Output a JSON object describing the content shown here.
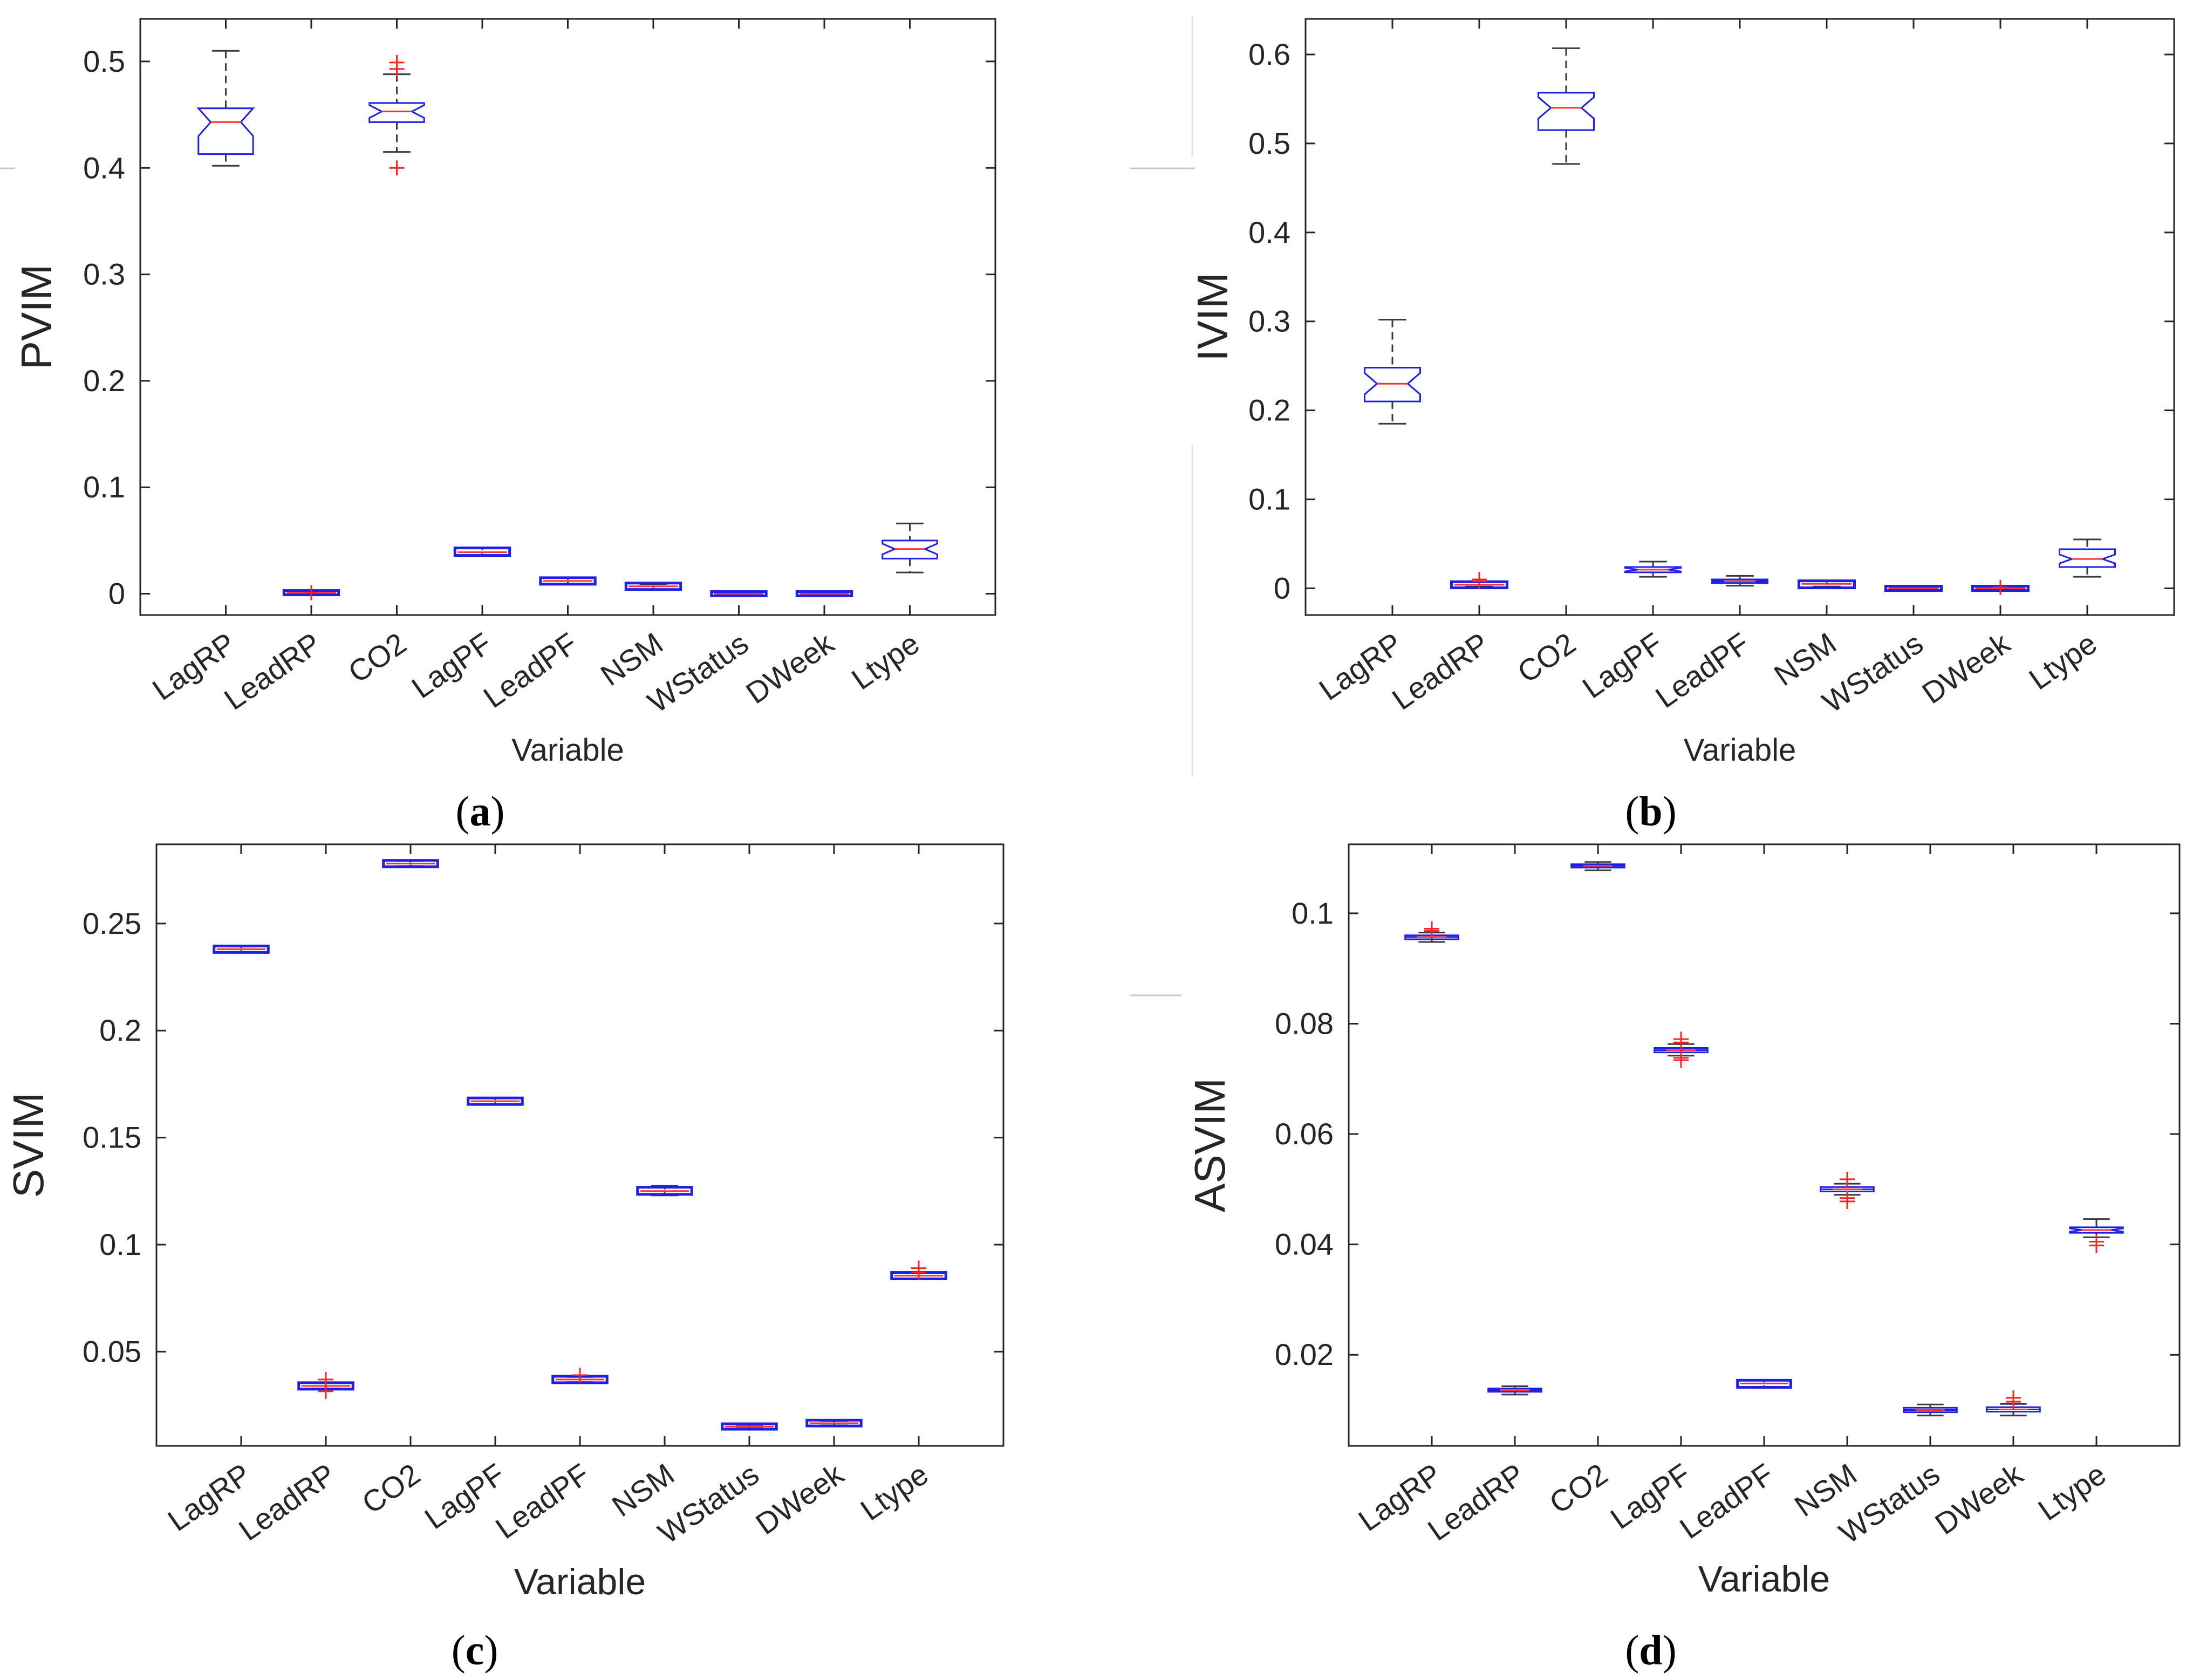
{
  "figure": {
    "categories": [
      "LagRP",
      "LeadRP",
      "CO2",
      "LagPF",
      "LeadPF",
      "NSM",
      "WStatus",
      "DWeek",
      "Ltype"
    ],
    "colors": {
      "box": "#1f1fe6",
      "median": "#ff3030",
      "whisker": "#3a3a3a",
      "outlier": "#ff2020",
      "axis": "#262626"
    }
  },
  "chart_data": [
    {
      "panel": "a",
      "type": "box",
      "ylabel": "PVIM",
      "xlabel": "Variable",
      "ylim": [
        -0.02,
        0.54
      ],
      "yticks": [
        0,
        0.1,
        0.2,
        0.3,
        0.4,
        0.5
      ],
      "ytick_labels": [
        "0",
        "0.1",
        "0.2",
        "0.3",
        "0.4",
        "0.5"
      ],
      "boxes": [
        {
          "q1": 0.413,
          "med": 0.443,
          "q3": 0.456,
          "lo": 0.402,
          "hi": 0.51,
          "notch": 0.013,
          "outliers": []
        },
        {
          "q1": 0.001,
          "med": 0.001,
          "q3": 0.001,
          "lo": 0.001,
          "hi": 0.001,
          "notch": 0,
          "outliers": [
            0.001
          ]
        },
        {
          "q1": 0.443,
          "med": 0.453,
          "q3": 0.461,
          "lo": 0.415,
          "hi": 0.488,
          "notch": 0.006,
          "outliers": [
            0.499,
            0.493,
            0.4
          ]
        },
        {
          "q1": 0.038,
          "med": 0.039,
          "q3": 0.041,
          "lo": 0.036,
          "hi": 0.043,
          "notch": 0.001,
          "outliers": []
        },
        {
          "q1": 0.011,
          "med": 0.012,
          "q3": 0.013,
          "lo": 0.009,
          "hi": 0.015,
          "notch": 0.001,
          "outliers": []
        },
        {
          "q1": 0.006,
          "med": 0.007,
          "q3": 0.008,
          "lo": 0.004,
          "hi": 0.009,
          "notch": 0.001,
          "outliers": []
        },
        {
          "q1": 0.0,
          "med": 0.0,
          "q3": 0.0,
          "lo": 0.0,
          "hi": 0.0,
          "notch": 0,
          "outliers": []
        },
        {
          "q1": 0.0,
          "med": 0.0,
          "q3": 0.0,
          "lo": 0.0,
          "hi": 0.0,
          "notch": 0,
          "outliers": []
        },
        {
          "q1": 0.033,
          "med": 0.042,
          "q3": 0.05,
          "lo": 0.02,
          "hi": 0.066,
          "notch": 0.005,
          "outliers": []
        }
      ]
    },
    {
      "panel": "b",
      "type": "box",
      "ylabel": "IVIM",
      "xlabel": "Variable",
      "ylim": [
        -0.03,
        0.64
      ],
      "yticks": [
        0,
        0.1,
        0.2,
        0.3,
        0.4,
        0.5,
        0.6
      ],
      "ytick_labels": [
        "0",
        "0.1",
        "0.2",
        "0.3",
        "0.4",
        "0.5",
        "0.6"
      ],
      "boxes": [
        {
          "q1": 0.21,
          "med": 0.23,
          "q3": 0.248,
          "lo": 0.185,
          "hi": 0.302,
          "notch": 0.012,
          "outliers": []
        },
        {
          "q1": 0.003,
          "med": 0.004,
          "q3": 0.005,
          "lo": 0.002,
          "hi": 0.007,
          "notch": 0.001,
          "outliers": [
            0.01,
            0.008
          ]
        },
        {
          "q1": 0.515,
          "med": 0.54,
          "q3": 0.557,
          "lo": 0.477,
          "hi": 0.607,
          "notch": 0.012,
          "outliers": []
        },
        {
          "q1": 0.018,
          "med": 0.021,
          "q3": 0.024,
          "lo": 0.013,
          "hi": 0.03,
          "notch": 0.002,
          "outliers": []
        },
        {
          "q1": 0.006,
          "med": 0.008,
          "q3": 0.01,
          "lo": 0.003,
          "hi": 0.014,
          "notch": 0.001,
          "outliers": []
        },
        {
          "q1": 0.003,
          "med": 0.005,
          "q3": 0.006,
          "lo": 0.002,
          "hi": 0.008,
          "notch": 0.001,
          "outliers": []
        },
        {
          "q1": 0.0,
          "med": 0.0,
          "q3": 0.0,
          "lo": 0.0,
          "hi": 0.0,
          "notch": 0,
          "outliers": []
        },
        {
          "q1": 0.0,
          "med": 0.0,
          "q3": 0.0,
          "lo": 0.0,
          "hi": 0.0,
          "notch": 0,
          "outliers": [
            0.001
          ]
        },
        {
          "q1": 0.024,
          "med": 0.033,
          "q3": 0.044,
          "lo": 0.013,
          "hi": 0.055,
          "notch": 0.005,
          "outliers": []
        }
      ]
    },
    {
      "panel": "c",
      "type": "box",
      "ylabel": "SVIM",
      "xlabel": "Variable",
      "ylim": [
        0.006,
        0.287
      ],
      "yticks": [
        0.05,
        0.1,
        0.15,
        0.2,
        0.25
      ],
      "ytick_labels": [
        "0.05",
        "0.1",
        "0.15",
        "0.2",
        "0.25"
      ],
      "boxes": [
        {
          "q1": 0.2375,
          "med": 0.238,
          "q3": 0.2385,
          "lo": 0.2368,
          "hi": 0.2392,
          "notch": 0,
          "outliers": []
        },
        {
          "q1": 0.0335,
          "med": 0.034,
          "q3": 0.0345,
          "lo": 0.0328,
          "hi": 0.0352,
          "notch": 0,
          "outliers": [
            0.037,
            0.0315
          ]
        },
        {
          "q1": 0.2775,
          "med": 0.278,
          "q3": 0.2785,
          "lo": 0.2768,
          "hi": 0.2792,
          "notch": 0,
          "outliers": []
        },
        {
          "q1": 0.1665,
          "med": 0.167,
          "q3": 0.1675,
          "lo": 0.1655,
          "hi": 0.1685,
          "notch": 0,
          "outliers": []
        },
        {
          "q1": 0.0365,
          "med": 0.037,
          "q3": 0.0375,
          "lo": 0.0358,
          "hi": 0.0382,
          "notch": 0,
          "outliers": [
            0.039
          ]
        },
        {
          "q1": 0.1245,
          "med": 0.125,
          "q3": 0.1258,
          "lo": 0.123,
          "hi": 0.1275,
          "notch": 0,
          "outliers": []
        },
        {
          "q1": 0.0148,
          "med": 0.015,
          "q3": 0.0153,
          "lo": 0.0142,
          "hi": 0.0158,
          "notch": 0,
          "outliers": []
        },
        {
          "q1": 0.0163,
          "med": 0.0166,
          "q3": 0.017,
          "lo": 0.0156,
          "hi": 0.0176,
          "notch": 0,
          "outliers": []
        },
        {
          "q1": 0.085,
          "med": 0.0855,
          "q3": 0.086,
          "lo": 0.084,
          "hi": 0.087,
          "notch": 0,
          "outliers": [
            0.089,
            0.087
          ]
        }
      ]
    },
    {
      "panel": "d",
      "type": "box",
      "ylabel": "ASVIM",
      "xlabel": "Variable",
      "ylim": [
        0.0035,
        0.1125
      ],
      "yticks": [
        0.02,
        0.04,
        0.06,
        0.08,
        0.1
      ],
      "ytick_labels": [
        "0.02",
        "0.04",
        "0.06",
        "0.08",
        "0.1"
      ],
      "boxes": [
        {
          "q1": 0.0953,
          "med": 0.0957,
          "q3": 0.096,
          "lo": 0.0948,
          "hi": 0.0965,
          "notch": 0,
          "outliers": [
            0.0972,
            0.0968
          ]
        },
        {
          "q1": 0.0133,
          "med": 0.0136,
          "q3": 0.0139,
          "lo": 0.0128,
          "hi": 0.0143,
          "notch": 0,
          "outliers": []
        },
        {
          "q1": 0.1083,
          "med": 0.1086,
          "q3": 0.1089,
          "lo": 0.1078,
          "hi": 0.1093,
          "notch": 0,
          "outliers": []
        },
        {
          "q1": 0.0748,
          "med": 0.0752,
          "q3": 0.0756,
          "lo": 0.0742,
          "hi": 0.0763,
          "notch": 0,
          "outliers": [
            0.0772,
            0.0766,
            0.0738,
            0.0734
          ]
        },
        {
          "q1": 0.0145,
          "med": 0.0148,
          "q3": 0.015,
          "lo": 0.014,
          "hi": 0.0154,
          "notch": 0,
          "outliers": []
        },
        {
          "q1": 0.0496,
          "med": 0.05,
          "q3": 0.0504,
          "lo": 0.049,
          "hi": 0.051,
          "notch": 0,
          "outliers": [
            0.0518,
            0.0484,
            0.0478
          ]
        },
        {
          "q1": 0.0096,
          "med": 0.01,
          "q3": 0.0104,
          "lo": 0.009,
          "hi": 0.011,
          "notch": 0,
          "outliers": []
        },
        {
          "q1": 0.0097,
          "med": 0.0101,
          "q3": 0.0105,
          "lo": 0.009,
          "hi": 0.0111,
          "notch": 0,
          "outliers": [
            0.0122,
            0.0115
          ]
        },
        {
          "q1": 0.0421,
          "med": 0.0426,
          "q3": 0.0431,
          "lo": 0.0413,
          "hi": 0.0446,
          "notch": 0.0003,
          "outliers": [
            0.0405,
            0.0398
          ]
        }
      ]
    }
  ],
  "panel_labels": {
    "a": {
      "open": "(",
      "letter": "a",
      "close": ")"
    },
    "b": {
      "open": "(",
      "letter": "b",
      "close": ")"
    },
    "c": {
      "open": "(",
      "letter": "c",
      "close": ")"
    },
    "d": {
      "open": "(",
      "letter": "d",
      "close": ")"
    }
  }
}
